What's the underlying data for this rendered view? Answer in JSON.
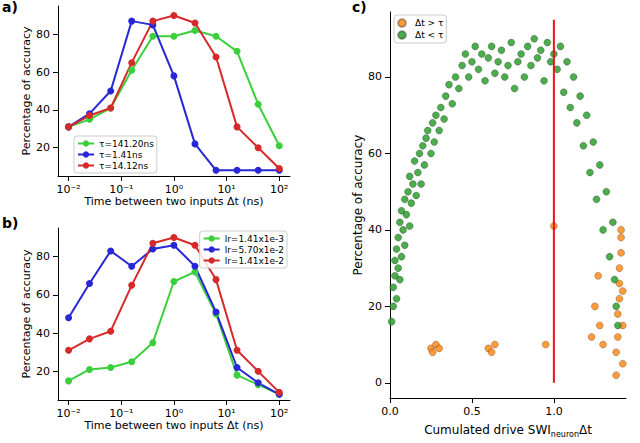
{
  "chart_data": [
    {
      "type": "line",
      "title": "a)",
      "xlabel": "Time between two inputs Δt (ns)",
      "ylabel": "Percentage of accuracy",
      "log": "x",
      "grid": false,
      "legend": "lower left",
      "marker": "circle",
      "xlim": [
        0.0063,
        160
      ],
      "xticks": [
        {
          "value": 0.01,
          "label": "10⁻²"
        },
        {
          "value": 0.1,
          "label": "10⁻¹"
        },
        {
          "value": 1,
          "label": "10⁰"
        },
        {
          "value": 10,
          "label": "10¹"
        },
        {
          "value": 100,
          "label": "10²"
        }
      ],
      "ylim": [
        5,
        95
      ],
      "yticks": [
        20,
        40,
        60,
        80
      ],
      "x": [
        0.01,
        0.025,
        0.063,
        0.158,
        0.398,
        1,
        2.51,
        6.31,
        15.8,
        39.8,
        100
      ],
      "series": [
        {
          "name": "τ=141.20ns",
          "color": "#3ccf3c",
          "values": [
            31,
            35,
            41,
            61,
            79,
            79,
            82,
            79,
            71,
            43,
            21
          ]
        },
        {
          "name": "τ=1.41ns",
          "color": "#2727d6",
          "values": [
            31,
            38,
            50,
            87,
            85,
            58,
            22,
            8,
            8,
            8,
            8
          ]
        },
        {
          "name": "τ=14.12ns",
          "color": "#d62a2a",
          "values": [
            31,
            37,
            41,
            65,
            87,
            90,
            86,
            68,
            31,
            20,
            9
          ]
        }
      ]
    },
    {
      "type": "line",
      "title": "b)",
      "xlabel": "Time between two inputs Δt (ns)",
      "ylabel": "Percentage of accuracy",
      "log": "x",
      "grid": false,
      "legend": "upper right",
      "marker": "circle",
      "xlim": [
        0.0063,
        160
      ],
      "xticks": [
        {
          "value": 0.01,
          "label": "10⁻²"
        },
        {
          "value": 0.1,
          "label": "10⁻¹"
        },
        {
          "value": 1,
          "label": "10⁰"
        },
        {
          "value": 10,
          "label": "10¹"
        },
        {
          "value": 100,
          "label": "10²"
        }
      ],
      "ylim": [
        5,
        95
      ],
      "yticks": [
        20,
        40,
        60,
        80
      ],
      "x": [
        0.01,
        0.025,
        0.063,
        0.158,
        0.398,
        1,
        2.51,
        6.31,
        15.8,
        39.8,
        100
      ],
      "series": [
        {
          "name": "lr=1.41x1e-3",
          "color": "#3ccf3c",
          "values": [
            15,
            21,
            22,
            25,
            35,
            67,
            72,
            50,
            18,
            13,
            8
          ]
        },
        {
          "name": "lr=5.70x1e-2",
          "color": "#2727d6",
          "values": [
            48,
            66,
            83,
            75,
            84,
            86,
            75,
            51,
            22,
            14,
            8
          ]
        },
        {
          "name": "lr=1.41x1e-2",
          "color": "#d62a2a",
          "values": [
            31,
            37,
            41,
            65,
            87,
            90,
            86,
            68,
            31,
            20,
            9
          ]
        }
      ]
    },
    {
      "type": "scatter",
      "title": "c)",
      "xlabel": "Cumulated drive SWIneuronΔt",
      "xlabel_subscript": "neuron",
      "ylabel": "Percentage of accuracy",
      "grid": false,
      "legend": "upper left",
      "marker": "circle",
      "xlim": [
        0,
        1.44
      ],
      "xticks": [
        {
          "value": 0,
          "label": "0.0"
        },
        0.5,
        {
          "value": 1,
          "label": "1.0"
        }
      ],
      "ylim": [
        -4,
        97
      ],
      "yticks": [
        0,
        20,
        40,
        60,
        80
      ],
      "vline": {
        "x": 1.0,
        "y_from": 0,
        "y_to": 95,
        "color": "#ee1111"
      },
      "series": [
        {
          "name": "Δt > τ",
          "color": "#ff8c1a",
          "points": [
            [
              0.25,
              9
            ],
            [
              0.26,
              8
            ],
            [
              0.28,
              10
            ],
            [
              0.3,
              9
            ],
            [
              0.6,
              9
            ],
            [
              0.62,
              8
            ],
            [
              0.64,
              10
            ],
            [
              0.95,
              10
            ],
            [
              1.0,
              41
            ],
            [
              1.23,
              12
            ],
            [
              1.25,
              20
            ],
            [
              1.27,
              28
            ],
            [
              1.28,
              15
            ],
            [
              1.3,
              10
            ],
            [
              1.38,
              2
            ],
            [
              1.38,
              8
            ],
            [
              1.39,
              12
            ],
            [
              1.39,
              18
            ],
            [
              1.4,
              22
            ],
            [
              1.4,
              26
            ],
            [
              1.4,
              30
            ],
            [
              1.41,
              34
            ],
            [
              1.41,
              38
            ],
            [
              1.41,
              40
            ],
            [
              1.42,
              5
            ],
            [
              1.42,
              15
            ],
            [
              1.42,
              24
            ]
          ]
        },
        {
          "name": "Δt < τ",
          "color": "#2e9e2e",
          "points": [
            [
              0.01,
              16
            ],
            [
              0.02,
              20
            ],
            [
              0.02,
              25
            ],
            [
              0.03,
              28
            ],
            [
              0.03,
              32
            ],
            [
              0.04,
              22
            ],
            [
              0.04,
              35
            ],
            [
              0.05,
              30
            ],
            [
              0.05,
              38
            ],
            [
              0.06,
              27
            ],
            [
              0.06,
              42
            ],
            [
              0.07,
              33
            ],
            [
              0.07,
              45
            ],
            [
              0.08,
              40
            ],
            [
              0.09,
              36
            ],
            [
              0.09,
              48
            ],
            [
              0.1,
              44
            ],
            [
              0.11,
              50
            ],
            [
              0.12,
              41
            ],
            [
              0.12,
              54
            ],
            [
              0.13,
              47
            ],
            [
              0.14,
              52
            ],
            [
              0.15,
              58
            ],
            [
              0.16,
              49
            ],
            [
              0.17,
              55
            ],
            [
              0.18,
              60
            ],
            [
              0.19,
              52
            ],
            [
              0.2,
              62
            ],
            [
              0.21,
              57
            ],
            [
              0.22,
              64
            ],
            [
              0.23,
              66
            ],
            [
              0.25,
              60
            ],
            [
              0.26,
              68
            ],
            [
              0.27,
              63
            ],
            [
              0.28,
              70
            ],
            [
              0.3,
              66
            ],
            [
              0.31,
              72
            ],
            [
              0.33,
              69
            ],
            [
              0.34,
              75
            ],
            [
              0.36,
              78
            ],
            [
              0.38,
              73
            ],
            [
              0.4,
              80
            ],
            [
              0.42,
              77
            ],
            [
              0.44,
              83
            ],
            [
              0.46,
              86
            ],
            [
              0.48,
              80
            ],
            [
              0.5,
              84
            ],
            [
              0.52,
              88
            ],
            [
              0.54,
              82
            ],
            [
              0.56,
              86
            ],
            [
              0.58,
              79
            ],
            [
              0.6,
              85
            ],
            [
              0.62,
              88
            ],
            [
              0.64,
              81
            ],
            [
              0.66,
              84
            ],
            [
              0.68,
              87
            ],
            [
              0.7,
              80
            ],
            [
              0.72,
              83
            ],
            [
              0.74,
              89
            ],
            [
              0.76,
              77
            ],
            [
              0.78,
              84
            ],
            [
              0.8,
              86
            ],
            [
              0.82,
              80
            ],
            [
              0.84,
              88
            ],
            [
              0.86,
              83
            ],
            [
              0.88,
              90
            ],
            [
              0.9,
              85
            ],
            [
              0.92,
              87
            ],
            [
              0.94,
              79
            ],
            [
              0.96,
              89
            ],
            [
              0.98,
              84
            ],
            [
              1.0,
              86
            ],
            [
              1.02,
              82
            ],
            [
              1.04,
              88
            ],
            [
              1.06,
              76
            ],
            [
              1.08,
              84
            ],
            [
              1.1,
              72
            ],
            [
              1.12,
              80
            ],
            [
              1.14,
              68
            ],
            [
              1.16,
              75
            ],
            [
              1.18,
              62
            ],
            [
              1.2,
              70
            ],
            [
              1.22,
              55
            ],
            [
              1.24,
              63
            ],
            [
              1.26,
              48
            ],
            [
              1.28,
              57
            ],
            [
              1.3,
              40
            ],
            [
              1.32,
              50
            ],
            [
              1.34,
              33
            ],
            [
              1.36,
              42
            ],
            [
              1.37,
              27
            ],
            [
              1.38,
              20
            ],
            [
              1.39,
              15
            ]
          ]
        }
      ]
    }
  ]
}
